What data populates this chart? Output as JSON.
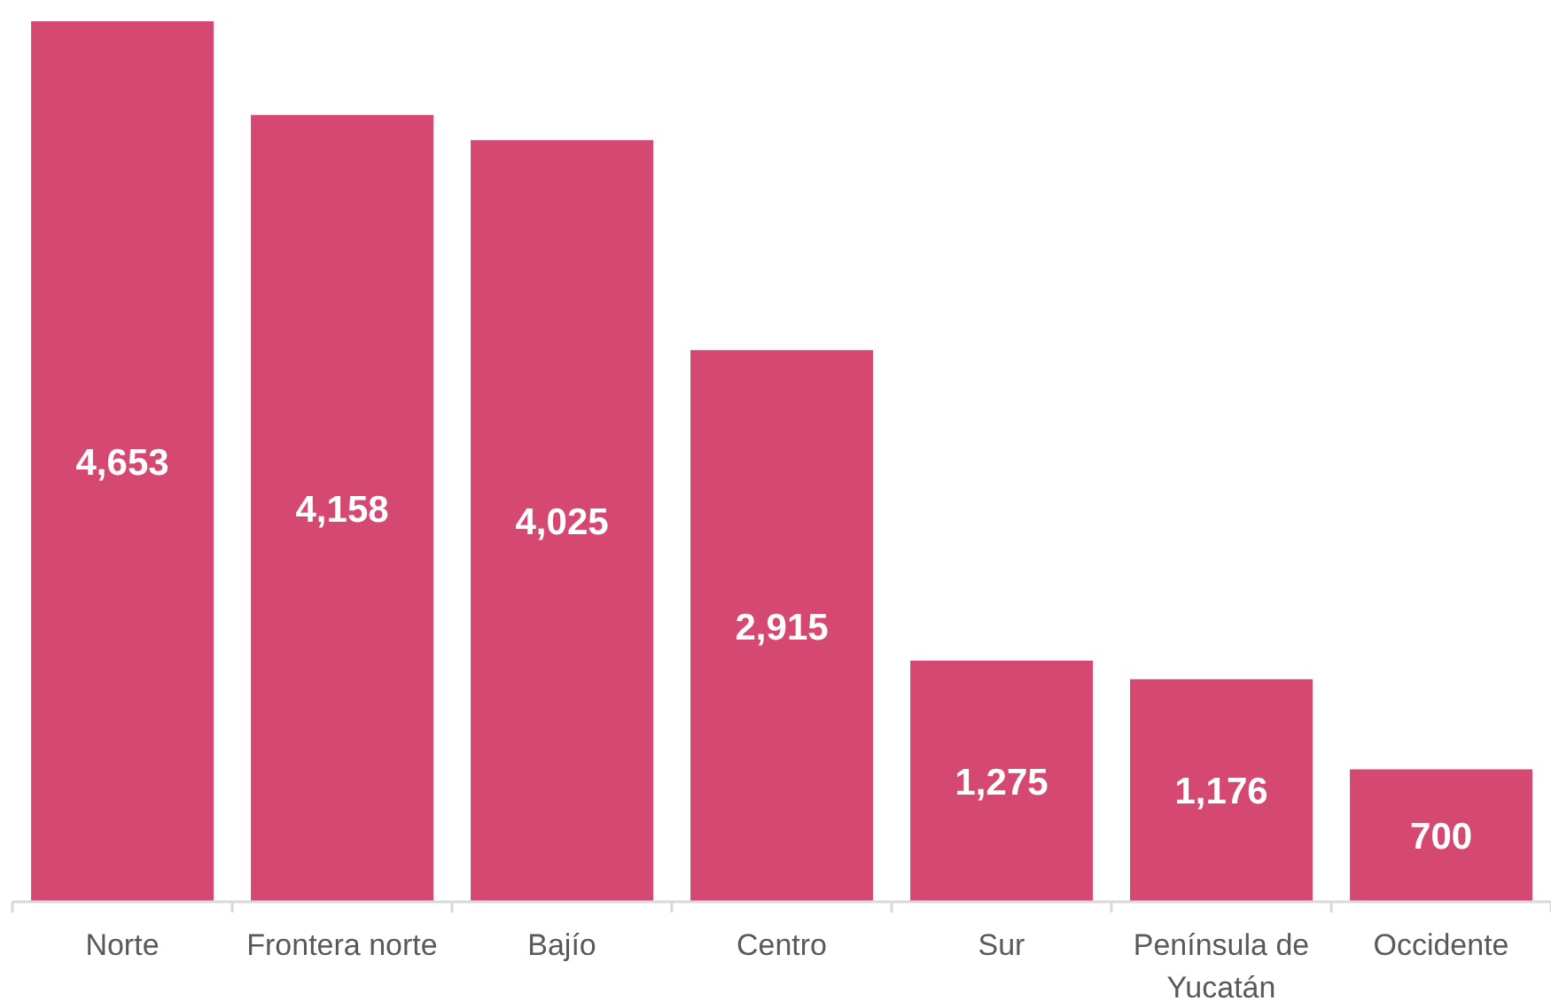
{
  "chart_data": {
    "type": "bar",
    "categories": [
      "Norte",
      "Frontera norte",
      "Bajío",
      "Centro",
      "Sur",
      "Península de Yucatán",
      "Occidente"
    ],
    "values": [
      4653,
      4158,
      4025,
      2915,
      1275,
      1176,
      700
    ],
    "value_labels": [
      "4,653",
      "4,158",
      "4,025",
      "2,915",
      "1,275",
      "1,176",
      "700"
    ],
    "color": "#d54872"
  }
}
